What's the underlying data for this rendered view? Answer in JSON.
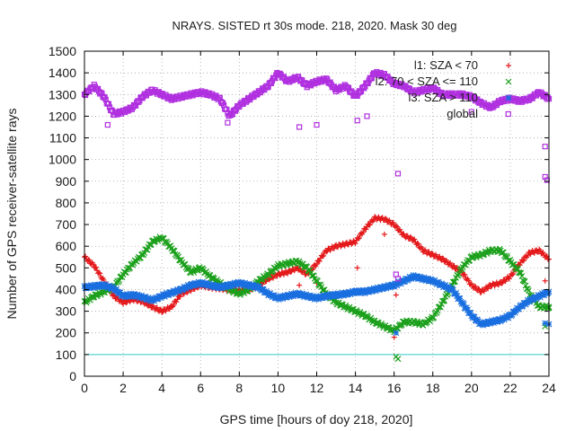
{
  "chart_data": {
    "type": "scatter",
    "title": "NRAYS. SISTED rt 30s mode. 218, 2020. Mask 30 deg",
    "xlabel": "GPS time [hours of doy 218, 2020]",
    "ylabel": "Number of GPS receiver-satellite rays",
    "xlim": [
      0,
      24
    ],
    "ylim": [
      0,
      1500
    ],
    "grid": true,
    "legend_position": "top-right",
    "x_ticks": [
      0,
      2,
      4,
      6,
      8,
      10,
      12,
      14,
      16,
      18,
      20,
      22,
      24
    ],
    "y_ticks": [
      0,
      100,
      200,
      300,
      400,
      500,
      600,
      700,
      800,
      900,
      1000,
      1100,
      1200,
      1300,
      1400,
      1500
    ],
    "colors": {
      "l1": "#e41a1c",
      "l2": "#1ca01c",
      "l3": "#1a6fe0",
      "global": "#b030e0",
      "threshold": "#33cccc"
    },
    "threshold_line": {
      "y": 100
    },
    "series": [
      {
        "name": "l1: SZA < 70",
        "marker": "plus",
        "x": [
          0.0,
          0.5,
          1.0,
          1.5,
          2.0,
          2.5,
          3.0,
          3.5,
          4.0,
          4.5,
          5.0,
          5.5,
          6.0,
          6.5,
          7.0,
          7.5,
          8.0,
          8.5,
          9.0,
          9.5,
          10.0,
          10.5,
          11.0,
          11.5,
          12.0,
          12.5,
          13.0,
          13.5,
          14.0,
          14.5,
          15.0,
          15.5,
          16.0,
          16.5,
          17.0,
          17.5,
          18.0,
          18.5,
          19.0,
          19.5,
          20.0,
          20.5,
          21.0,
          21.5,
          22.0,
          22.5,
          23.0,
          23.5,
          24.0
        ],
        "values": [
          550,
          510,
          440,
          370,
          340,
          355,
          345,
          320,
          300,
          320,
          380,
          400,
          420,
          410,
          405,
          400,
          395,
          400,
          420,
          450,
          470,
          480,
          500,
          470,
          520,
          580,
          600,
          610,
          620,
          680,
          730,
          725,
          700,
          650,
          630,
          580,
          560,
          540,
          510,
          480,
          420,
          390,
          420,
          430,
          460,
          520,
          570,
          580,
          540
        ],
        "outliers": [
          [
            11.1,
            420
          ],
          [
            12.0,
            430
          ],
          [
            14.1,
            500
          ],
          [
            15.5,
            655
          ],
          [
            16.0,
            180
          ],
          [
            16.1,
            375
          ],
          [
            23.8,
            440
          ]
        ]
      },
      {
        "name": "l2: 70 < SZA <= 110",
        "marker": "cross",
        "x": [
          0.0,
          0.5,
          1.0,
          1.5,
          2.0,
          2.5,
          3.0,
          3.5,
          4.0,
          4.5,
          5.0,
          5.5,
          6.0,
          6.5,
          7.0,
          7.5,
          8.0,
          8.5,
          9.0,
          9.5,
          10.0,
          10.5,
          11.0,
          11.5,
          12.0,
          12.5,
          13.0,
          13.5,
          14.0,
          14.5,
          15.0,
          15.5,
          16.0,
          16.5,
          17.0,
          17.5,
          18.0,
          18.5,
          19.0,
          19.5,
          20.0,
          20.5,
          21.0,
          21.5,
          22.0,
          22.5,
          23.0,
          23.5,
          24.0
        ],
        "values": [
          340,
          370,
          390,
          410,
          470,
          520,
          560,
          620,
          640,
          590,
          530,
          480,
          500,
          460,
          430,
          400,
          380,
          400,
          440,
          470,
          510,
          520,
          530,
          500,
          440,
          380,
          340,
          320,
          300,
          280,
          250,
          230,
          210,
          250,
          250,
          240,
          270,
          340,
          420,
          500,
          550,
          560,
          580,
          580,
          530,
          480,
          380,
          320,
          320
        ],
        "outliers": [
          [
            16.1,
            90
          ],
          [
            16.2,
            80
          ],
          [
            23.8,
            230
          ],
          [
            24.0,
            315
          ]
        ]
      },
      {
        "name": "l3: SZA > 110",
        "marker": "star",
        "x": [
          0.0,
          0.5,
          1.0,
          1.5,
          2.0,
          2.5,
          3.0,
          3.5,
          4.0,
          4.5,
          5.0,
          5.5,
          6.0,
          6.5,
          7.0,
          7.5,
          8.0,
          8.5,
          9.0,
          9.5,
          10.0,
          10.5,
          11.0,
          11.5,
          12.0,
          12.5,
          13.0,
          13.5,
          14.0,
          14.5,
          15.0,
          15.5,
          16.0,
          16.5,
          17.0,
          17.5,
          18.0,
          18.5,
          19.0,
          19.5,
          20.0,
          20.5,
          21.0,
          21.5,
          22.0,
          22.5,
          23.0,
          23.5,
          24.0
        ],
        "values": [
          410,
          415,
          420,
          405,
          370,
          375,
          365,
          350,
          370,
          385,
          400,
          420,
          430,
          420,
          410,
          420,
          430,
          420,
          410,
          380,
          360,
          370,
          380,
          370,
          360,
          370,
          375,
          380,
          390,
          390,
          400,
          410,
          420,
          440,
          460,
          450,
          440,
          420,
          400,
          340,
          280,
          240,
          250,
          260,
          280,
          320,
          350,
          370,
          390
        ],
        "outliers": [
          [
            16.1,
            200
          ],
          [
            23.8,
            245
          ],
          [
            24.0,
            240
          ]
        ]
      },
      {
        "name": "global",
        "marker": "square",
        "x": [
          0.0,
          0.5,
          1.0,
          1.5,
          2.0,
          2.5,
          3.0,
          3.5,
          4.0,
          4.5,
          5.0,
          5.5,
          6.0,
          6.5,
          7.0,
          7.5,
          8.0,
          8.5,
          9.0,
          9.5,
          10.0,
          10.5,
          11.0,
          11.5,
          12.0,
          12.5,
          13.0,
          13.5,
          14.0,
          14.5,
          15.0,
          15.5,
          16.0,
          16.5,
          17.0,
          17.5,
          18.0,
          18.5,
          19.0,
          19.5,
          20.0,
          20.5,
          21.0,
          21.5,
          22.0,
          22.5,
          23.0,
          23.5,
          24.0
        ],
        "values": [
          1300,
          1340,
          1290,
          1210,
          1220,
          1240,
          1290,
          1320,
          1300,
          1280,
          1290,
          1300,
          1310,
          1300,
          1280,
          1200,
          1250,
          1280,
          1310,
          1340,
          1400,
          1360,
          1380,
          1340,
          1360,
          1370,
          1320,
          1340,
          1290,
          1340,
          1400,
          1390,
          1350,
          1340,
          1310,
          1320,
          1330,
          1300,
          1300,
          1300,
          1290,
          1260,
          1240,
          1270,
          1280,
          1270,
          1280,
          1310,
          1280
        ],
        "outliers": [
          [
            1.2,
            1160
          ],
          [
            7.4,
            1170
          ],
          [
            11.1,
            1150
          ],
          [
            12.0,
            1160
          ],
          [
            14.1,
            1180
          ],
          [
            14.6,
            1200
          ],
          [
            16.2,
            935
          ],
          [
            16.1,
            470
          ],
          [
            16.2,
            450
          ],
          [
            20.0,
            1220
          ],
          [
            21.9,
            1210
          ],
          [
            23.8,
            1060
          ],
          [
            23.8,
            920
          ],
          [
            23.9,
            905
          ]
        ]
      }
    ],
    "legend": [
      {
        "label": "l1: SZA < 70",
        "series": "l1"
      },
      {
        "label": "l2: 70 < SZA <= 110",
        "series": "l2"
      },
      {
        "label": "l3: SZA > 110",
        "series": "l3"
      },
      {
        "label": "global",
        "series": "global"
      }
    ]
  }
}
